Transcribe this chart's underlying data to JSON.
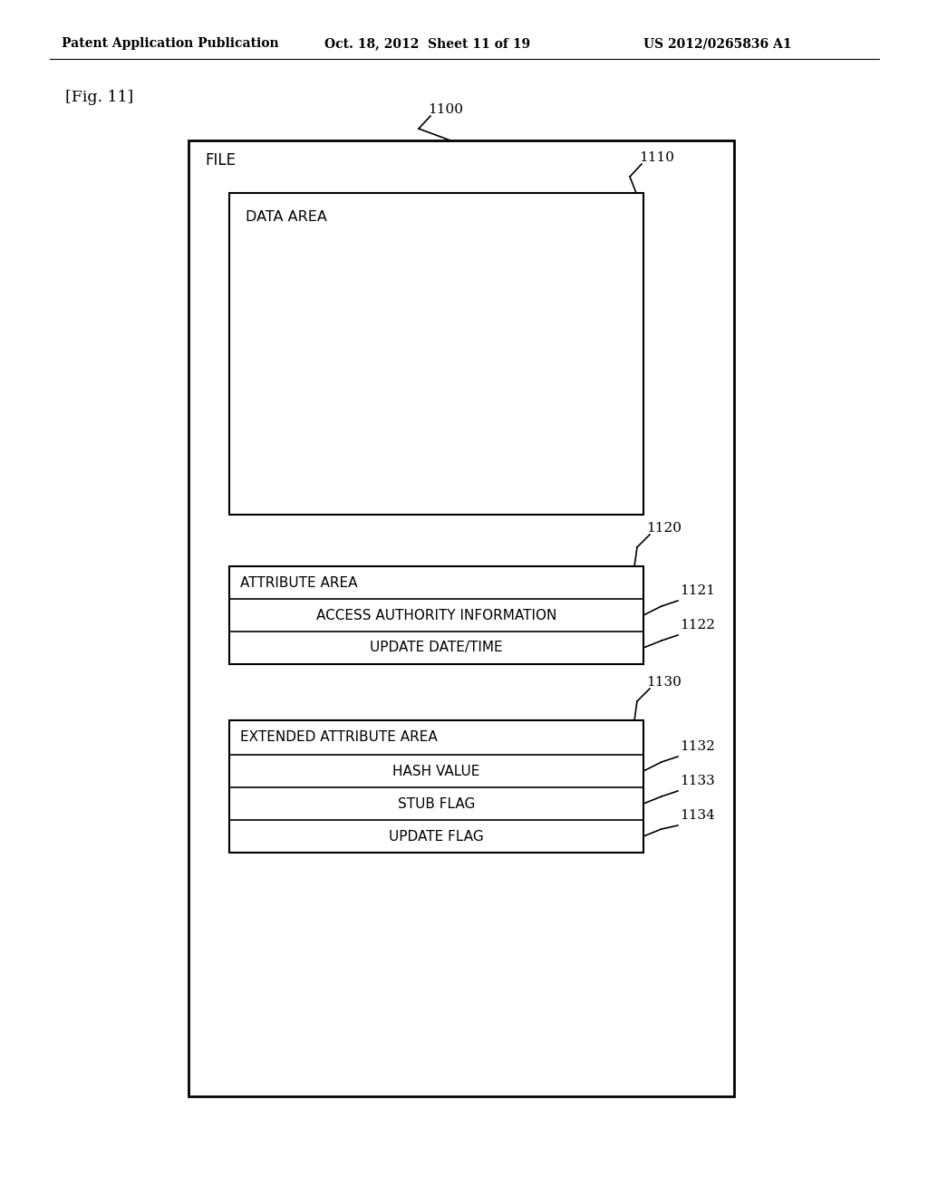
{
  "header_left": "Patent Application Publication",
  "header_mid": "Oct. 18, 2012  Sheet 11 of 19",
  "header_right": "US 2012/0265836 A1",
  "fig_label": "[Fig. 11]",
  "label_1100": "1100",
  "label_1110": "1110",
  "label_1120": "1120",
  "label_1121": "1121",
  "label_1122": "1122",
  "label_1130": "1130",
  "label_1132": "1132",
  "label_1133": "1133",
  "label_1134": "1134",
  "text_file": "FILE",
  "text_data_area": "DATA AREA",
  "text_attribute_area": "ATTRIBUTE AREA",
  "text_access_authority": "ACCESS AUTHORITY INFORMATION",
  "text_update_datetime": "UPDATE DATE/TIME",
  "text_extended_attribute": "EXTENDED ATTRIBUTE AREA",
  "text_hash_value": "HASH VALUE",
  "text_stub_flag": "STUB FLAG",
  "text_update_flag": "UPDATE FLAG",
  "bg_color": "#ffffff",
  "box_color": "#000000",
  "text_color": "#000000"
}
